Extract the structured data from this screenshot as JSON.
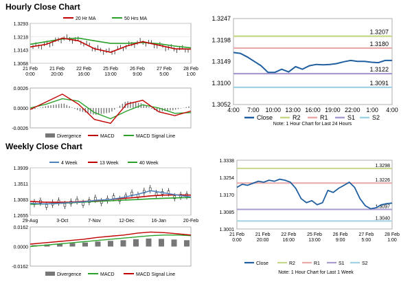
{
  "hourly": {
    "title": "Hourly Close Chart",
    "price": {
      "legend": [
        "20 Hr MA",
        "50 Hrs MA"
      ],
      "yticks": [
        "1.3293",
        "1.3218",
        "1.3143",
        "1.3068"
      ],
      "ylim": [
        1.3068,
        1.3293
      ],
      "xlabels": [
        [
          "21 Feb",
          "0:00"
        ],
        [
          "21 Feb",
          "20:00"
        ],
        [
          "22 Feb",
          "16:00"
        ],
        [
          "25 Feb",
          "13:00"
        ],
        [
          "26 Feb",
          "9:00"
        ],
        [
          "27 Feb",
          "5:00"
        ],
        [
          "28 Feb",
          "1:00"
        ]
      ]
    },
    "macd": {
      "yticks": [
        "0.0026",
        "0.0000",
        "-0.0026"
      ],
      "ylim": [
        -0.0026,
        0.0026
      ],
      "legend": [
        "Divergence",
        "MACD",
        "MACD Signal Line"
      ]
    },
    "levels_chart": {
      "yticks": [
        "1.3247",
        "1.3198",
        "1.3149",
        "1.3100",
        "1.3052"
      ],
      "ylim": [
        1.3052,
        1.3247
      ],
      "xticks": [
        "4:00",
        "7:00",
        "10:00",
        "13:00",
        "16:00",
        "19:00",
        "22:00",
        "1:00",
        "4:00"
      ],
      "legend": [
        "Close",
        "R2",
        "R1",
        "S1",
        "S2"
      ],
      "note": "Note: 1 Hour Chart for Last 24 Hours",
      "level_labels": [
        "1.3207",
        "1.3180",
        "1.3122",
        "1.3091"
      ]
    }
  },
  "weekly": {
    "title": "Weekly Close Chart",
    "price": {
      "legend": [
        "4 Week",
        "13 Week",
        "40 Week"
      ],
      "yticks": [
        "1.3939",
        "1.3511",
        "1.3083",
        "1.2655"
      ],
      "ylim": [
        1.2655,
        1.3939
      ],
      "xticks": [
        "29-Aug",
        "3-Oct",
        "7-Nov",
        "12-Dec",
        "16-Jan",
        "20-Feb"
      ]
    },
    "macd": {
      "yticks": [
        "0.0162",
        "0.0000",
        "-0.0162"
      ],
      "ylim": [
        -0.0162,
        0.0162
      ],
      "legend": [
        "Divergence",
        "MACD",
        "MACD Signal Line"
      ]
    },
    "levels_chart": {
      "yticks": [
        "1.3338",
        "1.3254",
        "1.3170",
        "1.3085",
        "1.3001"
      ],
      "ylim": [
        1.3001,
        1.3338
      ],
      "xlabels": [
        [
          "21 Feb",
          "0:00"
        ],
        [
          "21 Feb",
          "20:00"
        ],
        [
          "22 Feb",
          "16:00"
        ],
        [
          "25 Feb",
          "13:00"
        ],
        [
          "26 Feb",
          "9:00"
        ],
        [
          "27 Feb",
          "5:00"
        ],
        [
          "28 Feb",
          "1:00"
        ]
      ],
      "legend": [
        "Close",
        "R2",
        "R1",
        "S1",
        "S2"
      ],
      "note": "Note: 1 Hour Chart for Last 1 Week",
      "level_labels": [
        "1.3298",
        "1.3226",
        "1.3097",
        "1.3040"
      ]
    }
  },
  "colors": {
    "close": "#1f5f9f",
    "r2": "#c5d88a",
    "r1": "#e9a9a9",
    "s1": "#a99bd0",
    "s2": "#9fd3e3",
    "ma_red": "#c00000",
    "ma_green": "#2aa02a",
    "ma_blue": "#4f81bd",
    "divergence": "#777777"
  },
  "chart_data": [
    {
      "type": "line",
      "title": "Hourly Close Chart",
      "series": [
        {
          "name": "20 Hr MA",
          "values": [
            1.316,
            1.3175,
            1.321,
            1.3195,
            1.315,
            1.313,
            1.3165,
            1.319,
            1.317,
            1.315,
            1.3148
          ]
        },
        {
          "name": "50 Hrs MA",
          "values": [
            1.3175,
            1.319,
            1.3205,
            1.321,
            1.3195,
            1.318,
            1.318,
            1.3185,
            1.3178,
            1.3165,
            1.3155
          ]
        }
      ],
      "ylim": [
        1.3068,
        1.3293
      ]
    },
    {
      "type": "line",
      "series": [
        {
          "name": "MACD",
          "values": [
            -0.0002,
            0.0008,
            0.0018,
            0.0005,
            -0.0015,
            -0.002,
            0.0005,
            0.001,
            -0.0005,
            -0.001,
            -0.0004
          ]
        },
        {
          "name": "MACD Signal Line",
          "values": [
            0.0,
            0.0005,
            0.0012,
            0.0009,
            -0.0006,
            -0.0014,
            -0.0004,
            0.0004,
            0.0,
            -0.0007,
            -0.0006
          ]
        }
      ],
      "ylim": [
        -0.0026,
        0.0026
      ]
    },
    {
      "type": "line",
      "series": [
        {
          "name": "Close",
          "values": [
            1.317,
            1.3168,
            1.316,
            1.315,
            1.314,
            1.3125,
            1.3125,
            1.3132,
            1.3126,
            1.3138,
            1.3132,
            1.314,
            1.3143,
            1.3142,
            1.3143,
            1.3145,
            1.3149,
            1.3152,
            1.315,
            1.315,
            1.3148,
            1.3147,
            1.3152,
            1.3152
          ]
        },
        {
          "name": "R2",
          "values": [
            1.3207
          ]
        },
        {
          "name": "R1",
          "values": [
            1.318
          ]
        },
        {
          "name": "S1",
          "values": [
            1.3122
          ]
        },
        {
          "name": "S2",
          "values": [
            1.3091
          ]
        }
      ],
      "ylim": [
        1.3052,
        1.3247
      ]
    },
    {
      "type": "line",
      "title": "Weekly Close Chart",
      "series": [
        {
          "name": "4 Week",
          "values": [
            1.298,
            1.296,
            1.2975,
            1.3,
            1.302,
            1.306,
            1.308,
            1.314,
            1.322,
            1.332,
            1.326,
            1.32,
            1.315
          ]
        },
        {
          "name": "13 Week",
          "values": [
            1.303,
            1.301,
            1.3005,
            1.301,
            1.303,
            1.305,
            1.308,
            1.311,
            1.314,
            1.318,
            1.32,
            1.3205,
            1.32
          ]
        },
        {
          "name": "40 Week",
          "values": [
            1.295,
            1.296,
            1.2975,
            1.299,
            1.301,
            1.303,
            1.3045,
            1.3065,
            1.308,
            1.31,
            1.3115,
            1.3125,
            1.3135
          ]
        }
      ],
      "ylim": [
        1.2655,
        1.3939
      ]
    },
    {
      "type": "line",
      "series": [
        {
          "name": "MACD",
          "values": [
            0.002,
            0.003,
            0.004,
            0.005,
            0.006,
            0.0075,
            0.0085,
            0.0095,
            0.011,
            0.012,
            0.0115,
            0.0105,
            0.0095
          ]
        },
        {
          "name": "MACD Signal Line",
          "values": [
            0.0,
            0.001,
            0.002,
            0.003,
            0.004,
            0.005,
            0.006,
            0.007,
            0.008,
            0.009,
            0.0095,
            0.0095,
            0.009
          ]
        }
      ],
      "ylim": [
        -0.0162,
        0.0162
      ]
    },
    {
      "type": "line",
      "series": [
        {
          "name": "Close",
          "values": [
            1.3205,
            1.322,
            1.3215,
            1.3225,
            1.3235,
            1.323,
            1.324,
            1.3235,
            1.3245,
            1.324,
            1.323,
            1.32,
            1.315,
            1.313,
            1.314,
            1.312,
            1.313,
            1.319,
            1.318,
            1.32,
            1.3215,
            1.323,
            1.3205,
            1.315,
            1.3115,
            1.31,
            1.3105,
            1.312,
            1.3125,
            1.3128
          ]
        },
        {
          "name": "R2",
          "values": [
            1.3298
          ]
        },
        {
          "name": "R1",
          "values": [
            1.3226
          ]
        },
        {
          "name": "S1",
          "values": [
            1.3097
          ]
        },
        {
          "name": "S2",
          "values": [
            1.304
          ]
        }
      ],
      "ylim": [
        1.3001,
        1.3338
      ]
    }
  ]
}
